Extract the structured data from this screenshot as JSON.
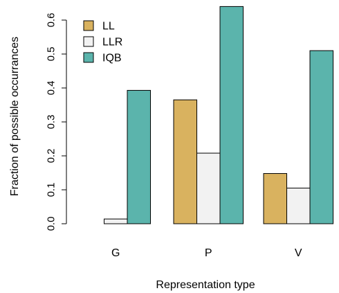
{
  "chart_data": {
    "type": "bar",
    "title": "",
    "xlabel": "Representation type",
    "ylabel": "Fraction of possible occurrances",
    "categories": [
      "G",
      "P",
      "V"
    ],
    "ylim": [
      0,
      0.65
    ],
    "yticks": [
      0.0,
      0.1,
      0.2,
      0.3,
      0.4,
      0.5,
      0.6
    ],
    "ytick_labels": [
      "0.0",
      "0.1",
      "0.2",
      "0.3",
      "0.4",
      "0.5",
      "0.6"
    ],
    "grid": false,
    "legend_position": "top-left",
    "series": [
      {
        "name": "LL",
        "color": "#D9B25F",
        "values": [
          0.0,
          0.365,
          0.148
        ]
      },
      {
        "name": "LLR",
        "color": "#F2F2F2",
        "values": [
          0.014,
          0.208,
          0.105
        ]
      },
      {
        "name": "IQB",
        "color": "#5BB4AC",
        "values": [
          0.393,
          0.64,
          0.51
        ]
      }
    ]
  }
}
